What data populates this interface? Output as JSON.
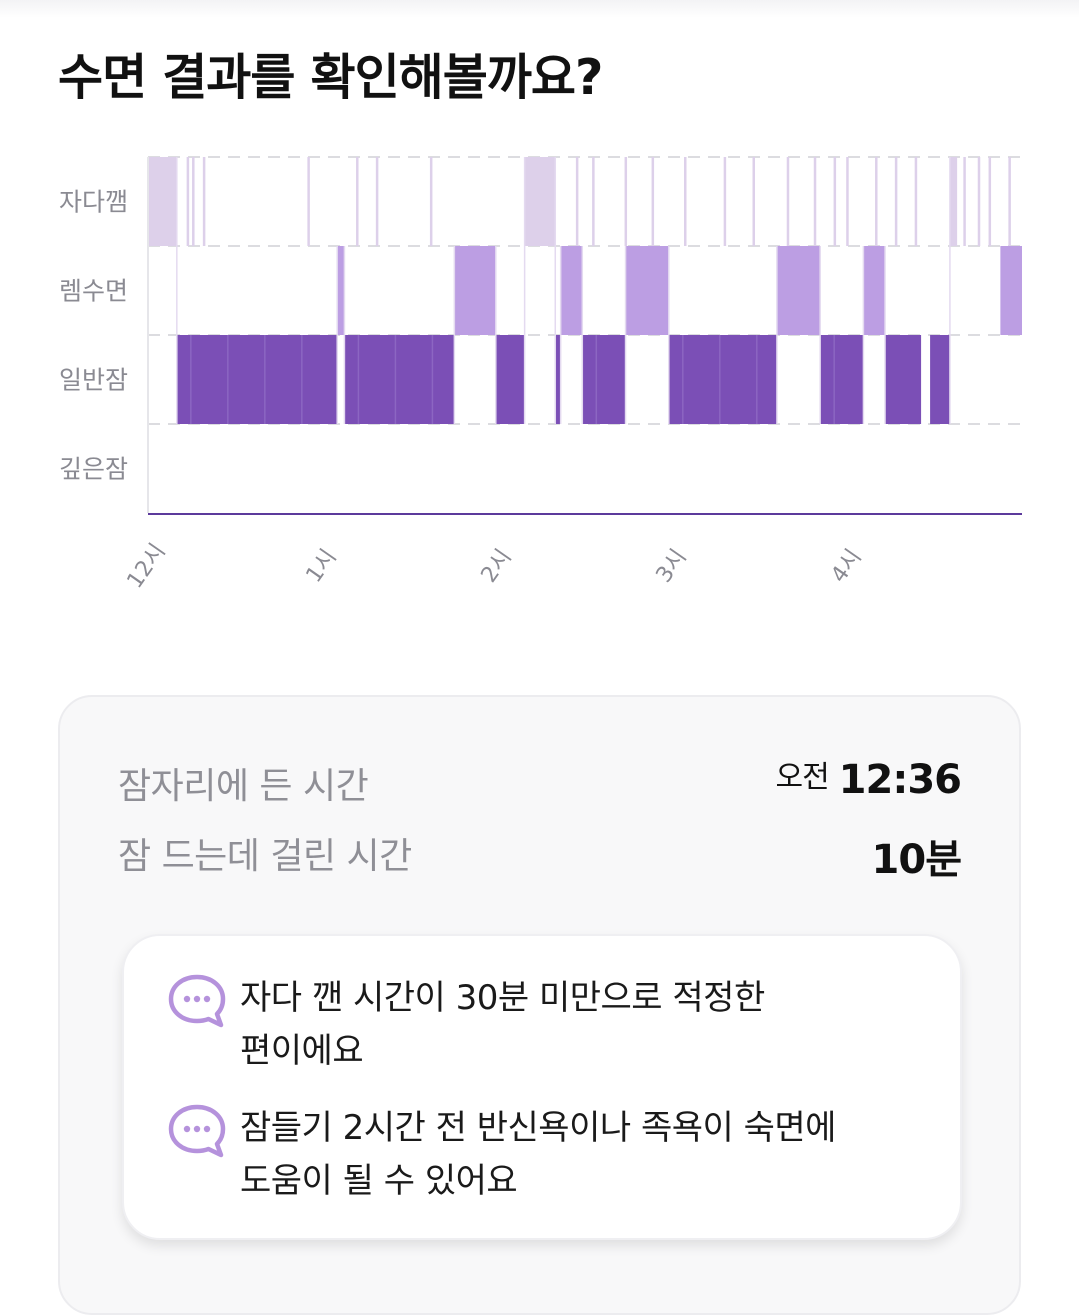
{
  "page": {
    "title": "수면 결과를 확인해볼까요?"
  },
  "chart_data": {
    "type": "step-timeline",
    "y_categories": [
      "자다깸",
      "렘수면",
      "일반잠",
      "깊은잠"
    ],
    "x_ticks": [
      "12시",
      "1시",
      "2시",
      "3시",
      "4시"
    ],
    "x_unit": "hours after midnight",
    "x_range": [
      0.0,
      4.85
    ],
    "colors": {
      "awake": "#ddd0ea",
      "rem": "#bc9ee3",
      "light": "#7b4fb6",
      "deep": "#5c3a9c"
    },
    "segments": [
      {
        "stage": "자다깸",
        "start": 0.0,
        "end": 0.16
      },
      {
        "stage": "일반잠",
        "start": 0.16,
        "end": 1.05
      },
      {
        "stage": "렘수면",
        "start": 1.05,
        "end": 1.09
      },
      {
        "stage": "일반잠",
        "start": 1.09,
        "end": 1.7
      },
      {
        "stage": "렘수면",
        "start": 1.7,
        "end": 1.93
      },
      {
        "stage": "일반잠",
        "start": 1.93,
        "end": 2.09
      },
      {
        "stage": "자다깸",
        "start": 2.09,
        "end": 2.26
      },
      {
        "stage": "일반잠",
        "start": 2.26,
        "end": 2.29
      },
      {
        "stage": "렘수면",
        "start": 2.29,
        "end": 2.41
      },
      {
        "stage": "일반잠",
        "start": 2.41,
        "end": 2.65
      },
      {
        "stage": "렘수면",
        "start": 2.65,
        "end": 2.89
      },
      {
        "stage": "일반잠",
        "start": 2.89,
        "end": 3.49
      },
      {
        "stage": "렘수면",
        "start": 3.49,
        "end": 3.73
      },
      {
        "stage": "일반잠",
        "start": 3.73,
        "end": 3.97
      },
      {
        "stage": "렘수면",
        "start": 3.97,
        "end": 4.09
      },
      {
        "stage": "일반잠",
        "start": 4.09,
        "end": 4.29
      },
      {
        "stage": "일반잠",
        "start": 4.34,
        "end": 4.45
      },
      {
        "stage": "자다깸",
        "start": 4.45,
        "end": 4.49
      },
      {
        "stage": "렘수면",
        "start": 4.73,
        "end": 4.85
      }
    ],
    "awake_ticks": [
      0.22,
      0.25,
      0.31,
      0.89,
      1.16,
      1.27,
      1.57,
      2.38,
      2.47,
      2.65,
      2.8,
      2.98,
      3.2,
      3.36,
      3.55,
      3.7,
      3.81,
      3.88,
      4.04,
      4.15,
      4.26,
      4.53,
      4.61,
      4.67,
      4.78
    ]
  },
  "summary": {
    "bedtime": {
      "label": "잠자리에 든 시간",
      "prefix": "오전",
      "value": "12:36"
    },
    "latency": {
      "label": "잠 드는데 걸린 시간",
      "value": "10분"
    }
  },
  "tips": [
    {
      "icon": "chat-bubble-icon",
      "text_line1": "자다 깬 시간이 30분 미만으로 적정한",
      "text_line2": "편이에요"
    },
    {
      "icon": "chat-bubble-icon",
      "text_line1": "잠들기 2시간 전 반신욕이나 족욕이 숙면에",
      "text_line2": "도움이 될 수 있어요"
    }
  ]
}
